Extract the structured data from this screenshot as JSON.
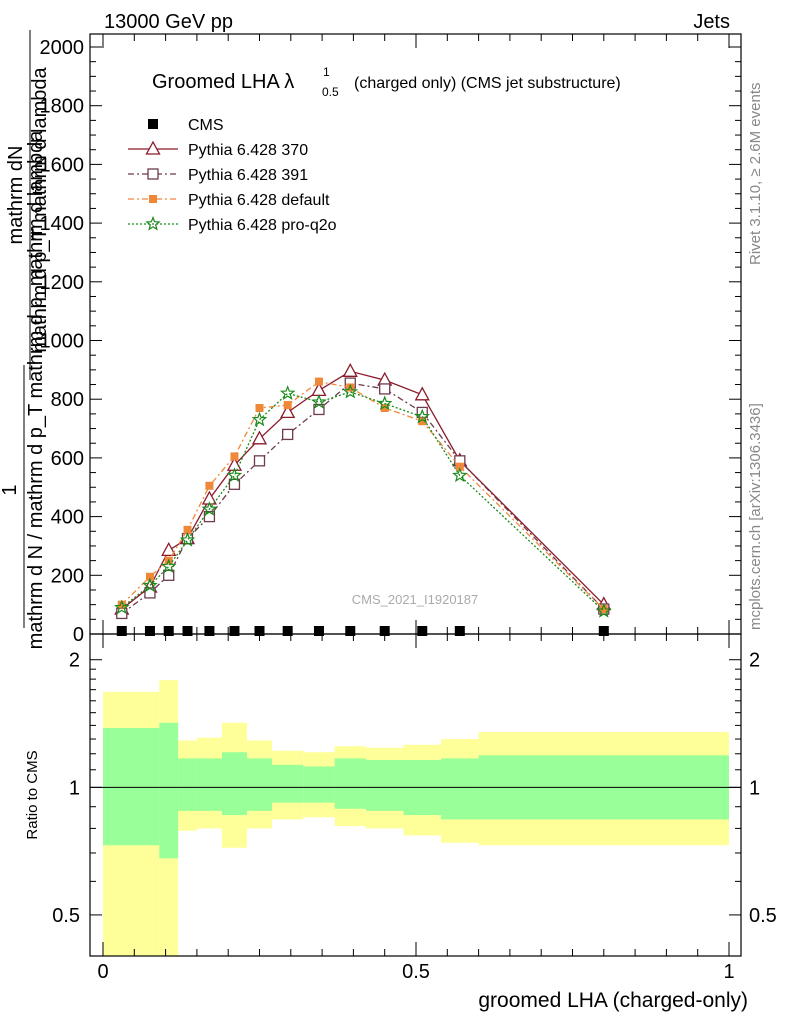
{
  "header": {
    "energy": "13000 GeV pp",
    "process": "Jets",
    "rivet": "Rivet 3.1.10, ≥ 2.6M events",
    "mcplots": "mcplots.cern.ch [arXiv:1306.3436]",
    "analysis": "CMS_2021_I1920187"
  },
  "chart_data": [
    {
      "type": "line",
      "title": "Groomed LHA λ",
      "title_superscript": "1",
      "title_subscript": "0.5",
      "title_suffix": "(charged only) (CMS jet substructure)",
      "ylabel_top": "mathrm dN",
      "ylabel_top_denominator": "mathrm d p_T mathrm d lambda",
      "ylabel_one": "1",
      "ylabel_bottom": "mathrm d N / mathrm d p_T mathrm d p_mathrm d lambda",
      "ylim": [
        0,
        2050
      ],
      "yticks": [
        0,
        200,
        400,
        600,
        800,
        1000,
        1200,
        1400,
        1600,
        1800,
        2000
      ],
      "xlim": [
        -0.02,
        1.0
      ],
      "legend_placement": "top-left",
      "x": [
        0.03,
        0.075,
        0.105,
        0.135,
        0.17,
        0.21,
        0.25,
        0.295,
        0.345,
        0.395,
        0.45,
        0.51,
        0.57,
        0.8
      ],
      "series": [
        {
          "name": "CMS",
          "color": "#000000",
          "marker": "square",
          "values": [
            0,
            0,
            0,
            0,
            0,
            0,
            0,
            0,
            0,
            0,
            0,
            0,
            0,
            0
          ]
        },
        {
          "name": "Pythia 6.428 370",
          "color": "#8b1a2b",
          "marker": "triangle",
          "dash": "",
          "values": [
            85,
            160,
            285,
            325,
            460,
            575,
            665,
            755,
            830,
            895,
            865,
            815,
            590,
            100
          ]
        },
        {
          "name": "Pythia 6.428 391",
          "color": "#6e3b4e",
          "marker": "open-square",
          "dash": "6,3,2,3",
          "values": [
            70,
            140,
            200,
            325,
            400,
            510,
            590,
            680,
            765,
            855,
            835,
            755,
            590,
            85
          ]
        },
        {
          "name": "Pythia 6.428 default",
          "color": "#f0883a",
          "marker": "filled-square",
          "dash": "6,3,2,3",
          "values": [
            100,
            195,
            250,
            355,
            505,
            605,
            770,
            780,
            860,
            840,
            770,
            725,
            570,
            85
          ]
        },
        {
          "name": "Pythia 6.428 pro-q2o",
          "color": "#1a8a1a",
          "marker": "star",
          "dash": "2,2",
          "values": [
            90,
            165,
            230,
            320,
            425,
            540,
            730,
            820,
            790,
            825,
            785,
            740,
            540,
            78
          ]
        }
      ]
    },
    {
      "type": "area",
      "ylabel": "Ratio to CMS",
      "xlabel": "groomed LHA (charged-only)",
      "ylog": true,
      "ylim": [
        0.4,
        2.3
      ],
      "yticks": [
        0.5,
        1,
        2
      ],
      "xticks": [
        0,
        0.5,
        1
      ],
      "xlim": [
        -0.02,
        1.0
      ],
      "bins": [
        0,
        0.09,
        0.12,
        0.15,
        0.19,
        0.23,
        0.27,
        0.32,
        0.37,
        0.42,
        0.48,
        0.54,
        0.6,
        1.0
      ],
      "green_band": {
        "color": "#99ff99",
        "upper": [
          1.38,
          1.42,
          1.17,
          1.17,
          1.21,
          1.17,
          1.13,
          1.12,
          1.17,
          1.16,
          1.16,
          1.17,
          1.19,
          1.19
        ],
        "lower": [
          0.73,
          0.68,
          0.88,
          0.88,
          0.86,
          0.88,
          0.92,
          0.92,
          0.89,
          0.88,
          0.86,
          0.84,
          0.84,
          0.84
        ]
      },
      "yellow_band": {
        "color": "#ffff99",
        "upper": [
          1.68,
          1.79,
          1.29,
          1.31,
          1.42,
          1.29,
          1.22,
          1.21,
          1.25,
          1.24,
          1.26,
          1.3,
          1.35,
          1.35
        ],
        "lower": [
          0.4,
          0.4,
          0.79,
          0.8,
          0.72,
          0.8,
          0.84,
          0.85,
          0.81,
          0.8,
          0.77,
          0.74,
          0.73,
          0.73
        ]
      }
    }
  ]
}
